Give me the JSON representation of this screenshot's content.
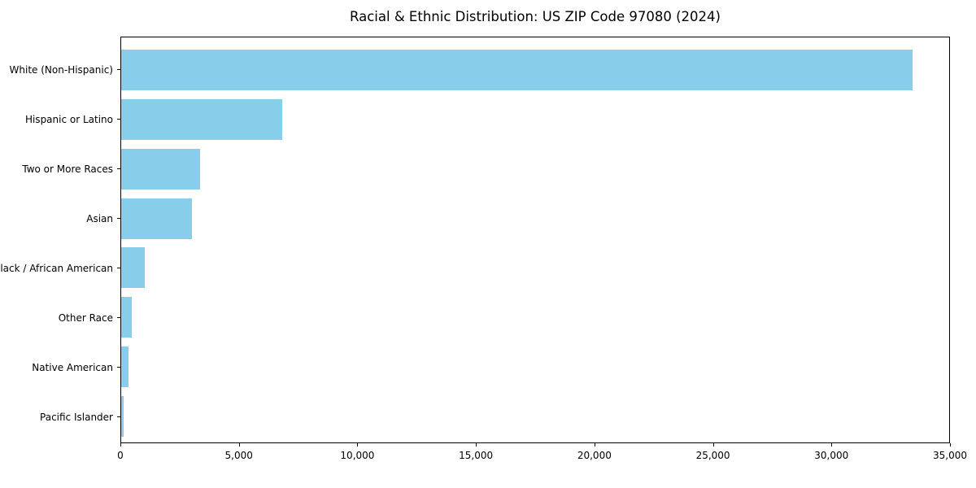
{
  "title": "Racial & Ethnic Distribution: US ZIP Code 97080 (2024)",
  "colors": {
    "bar": "#87CEEB",
    "axis": "#000000",
    "background": "#FFFFFF"
  },
  "chart_data": {
    "type": "bar",
    "orientation": "horizontal",
    "title": "Racial & Ethnic Distribution: US ZIP Code 97080 (2024)",
    "categories": [
      "White (Non-Hispanic)",
      "Hispanic or Latino",
      "Two or More Races",
      "Asian",
      "Black / African American",
      "Other Race",
      "Native American",
      "Pacific Islander"
    ],
    "values": [
      33450,
      6800,
      3350,
      3000,
      1000,
      450,
      300,
      110
    ],
    "xlabel": "",
    "ylabel": "",
    "xlim": [
      0,
      35000
    ],
    "xticks": [
      0,
      5000,
      10000,
      15000,
      20000,
      25000,
      30000,
      35000
    ],
    "xtick_labels": [
      "0",
      "5,000",
      "10,000",
      "15,000",
      "20,000",
      "25,000",
      "30,000",
      "35,000"
    ],
    "grid": false,
    "legend": null,
    "bar_color": "#87CEEB"
  }
}
